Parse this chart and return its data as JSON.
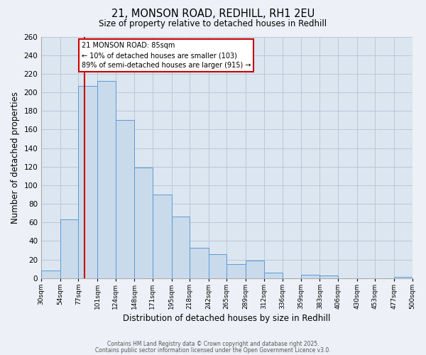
{
  "title1": "21, MONSON ROAD, REDHILL, RH1 2EU",
  "title2": "Size of property relative to detached houses in Redhill",
  "xlabel": "Distribution of detached houses by size in Redhill",
  "ylabel": "Number of detached properties",
  "bin_edges": [
    30,
    54,
    77,
    101,
    124,
    148,
    171,
    195,
    218,
    242,
    265,
    289,
    312,
    336,
    359,
    383,
    406,
    430,
    453,
    477,
    500
  ],
  "bar_heights": [
    8,
    63,
    207,
    212,
    170,
    119,
    90,
    66,
    33,
    26,
    15,
    19,
    6,
    0,
    4,
    3,
    0,
    0,
    0,
    1
  ],
  "bar_fill": "#c9daea",
  "bar_edge": "#5b9bd5",
  "grid_color": "#b8c8d8",
  "bg_color": "#dce6f0",
  "fig_bg_color": "#edf1f7",
  "vline_x": 85,
  "vline_color": "#cc0000",
  "annotation_line1": "21 MONSON ROAD: 85sqm",
  "annotation_line2": "← 10% of detached houses are smaller (103)",
  "annotation_line3": "89% of semi-detached houses are larger (915) →",
  "annotation_box_color": "#ffffff",
  "annotation_box_edge": "#cc0000",
  "ylim": [
    0,
    260
  ],
  "yticks": [
    0,
    20,
    40,
    60,
    80,
    100,
    120,
    140,
    160,
    180,
    200,
    220,
    240,
    260
  ],
  "footnote1": "Contains HM Land Registry data © Crown copyright and database right 2025.",
  "footnote2": "Contains public sector information licensed under the Open Government Licence v3.0."
}
